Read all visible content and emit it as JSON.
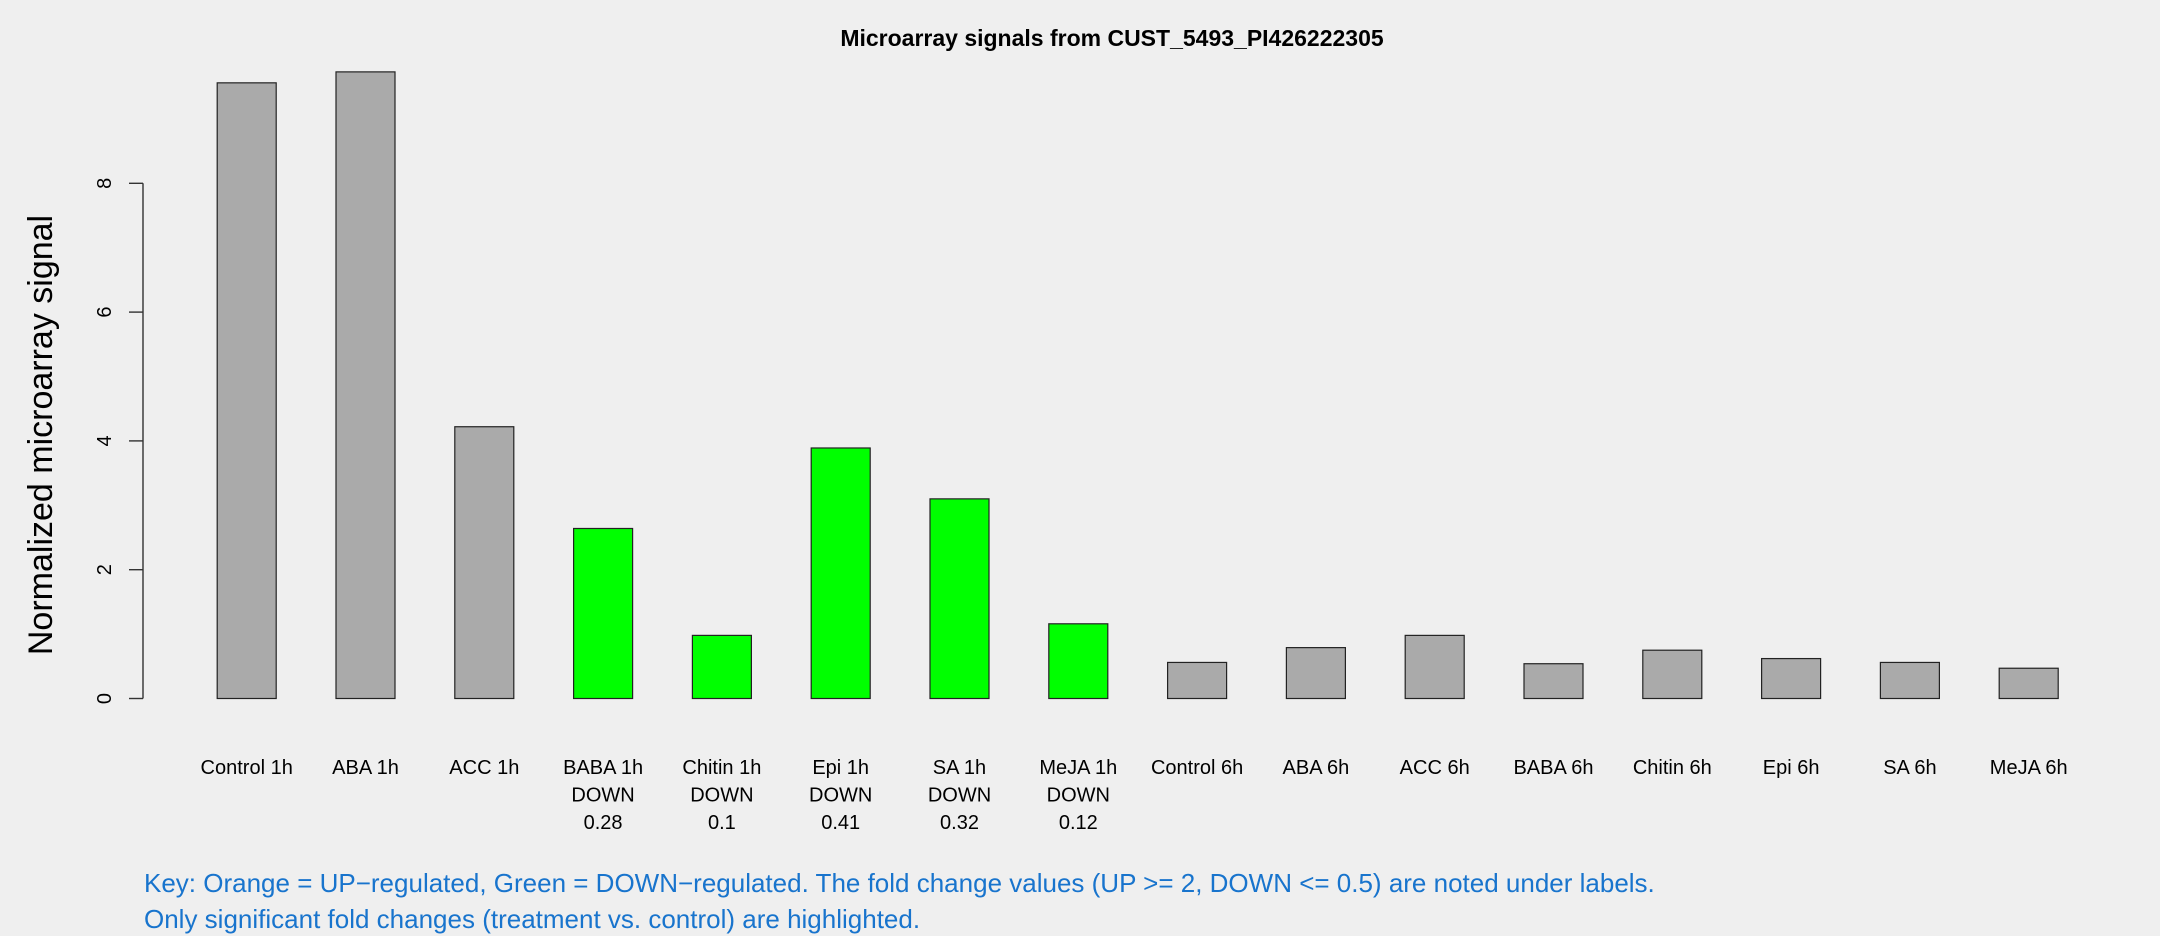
{
  "chart_data": {
    "type": "bar",
    "title": "Microarray signals from CUST_5493_PI426222305",
    "xlabel": "",
    "ylabel": "Normalized microarray signal",
    "ylim": [
      0,
      10
    ],
    "yticks": [
      0,
      2,
      4,
      6,
      8
    ],
    "grid": false,
    "categories": [
      "Control 1h",
      "ABA 1h",
      "ACC 1h",
      "BABA 1h",
      "Chitin 1h",
      "Epi 1h",
      "SA 1h",
      "MeJA 1h",
      "Control 6h",
      "ABA 6h",
      "ACC 6h",
      "BABA 6h",
      "Chitin 6h",
      "Epi 6h",
      "SA 6h",
      "MeJA 6h"
    ],
    "values": [
      9.56,
      9.73,
      4.22,
      2.64,
      0.98,
      3.89,
      3.1,
      1.16,
      0.56,
      0.79,
      0.98,
      0.54,
      0.75,
      0.62,
      0.56,
      0.47
    ],
    "regulation": [
      "",
      "",
      "",
      "DOWN",
      "DOWN",
      "DOWN",
      "DOWN",
      "DOWN",
      "",
      "",
      "",
      "",
      "",
      "",
      "",
      ""
    ],
    "fold_change": [
      "",
      "",
      "",
      "0.28",
      "0.1",
      "0.41",
      "0.32",
      "0.12",
      "",
      "",
      "",
      "",
      "",
      "",
      "",
      ""
    ],
    "colors": {
      "neutral": "#aaaaaa",
      "down": "#00ff00",
      "up": "#ffa500",
      "key_text": "#1874cd"
    }
  },
  "key": {
    "line1": "Key: Orange = UP−regulated, Green = DOWN−regulated. The fold change values (UP >= 2, DOWN <= 0.5) are noted under labels.",
    "line2": "Only significant fold changes (treatment vs. control) are highlighted."
  }
}
